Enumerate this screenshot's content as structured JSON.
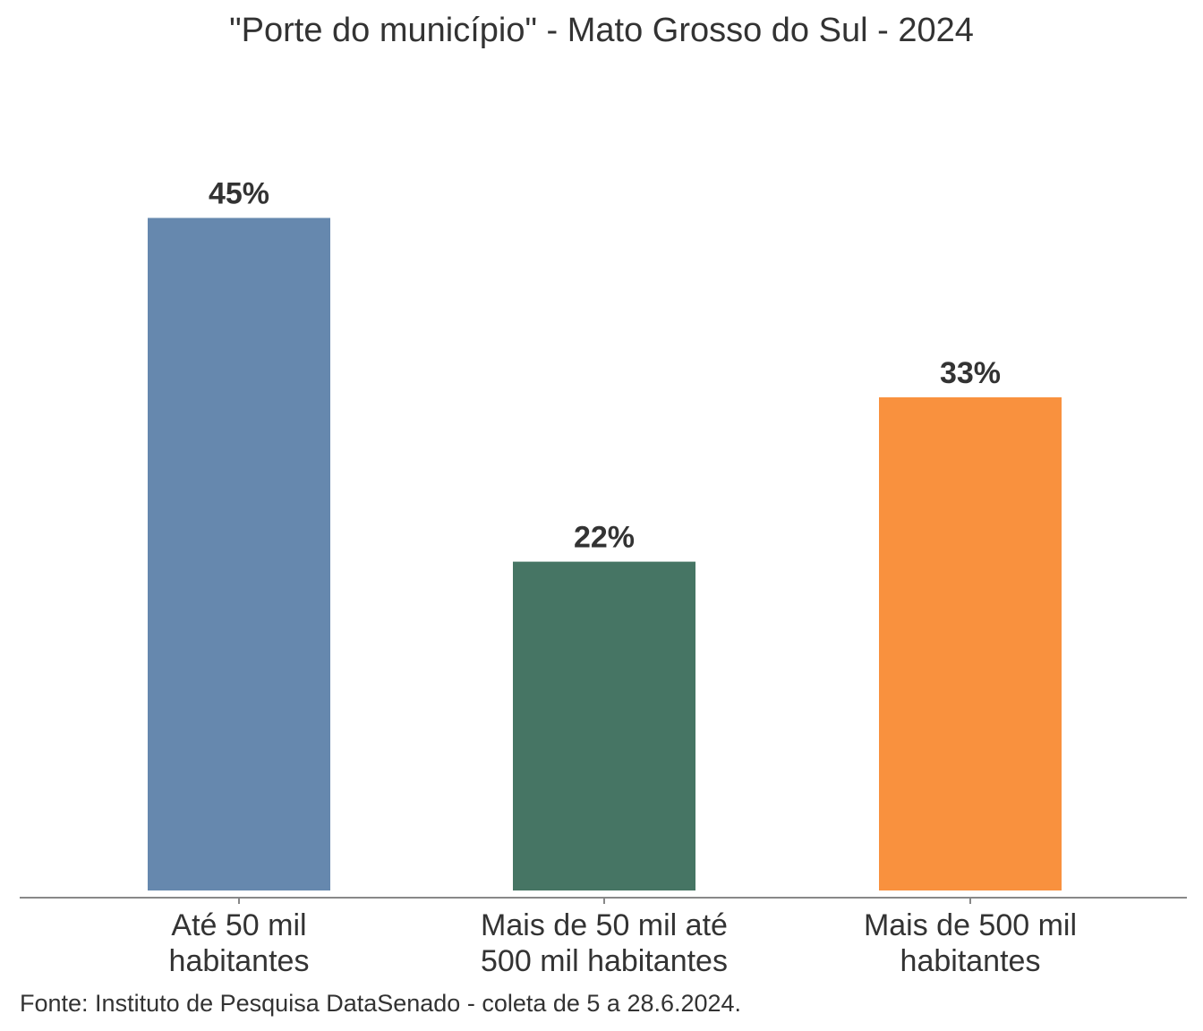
{
  "chart_data": {
    "type": "bar",
    "title": "\"Porte do município\" - Mato Grosso do Sul - 2024",
    "categories": [
      [
        "Até 50 mil",
        "habitantes"
      ],
      [
        "Mais de 50 mil até",
        "500 mil habitantes"
      ],
      [
        "Mais de 500 mil",
        "habitantes"
      ]
    ],
    "values": [
      45,
      22,
      33
    ],
    "value_labels": [
      "45%",
      "22%",
      "33%"
    ],
    "colors": [
      "#6688ae",
      "#467564",
      "#f9913e"
    ],
    "unit": "%",
    "ylim": [
      0,
      50
    ],
    "grid": false,
    "legend": "none",
    "source": "Fonte: Instituto de Pesquisa DataSenado - coleta de 5 a 28.6.2024."
  }
}
